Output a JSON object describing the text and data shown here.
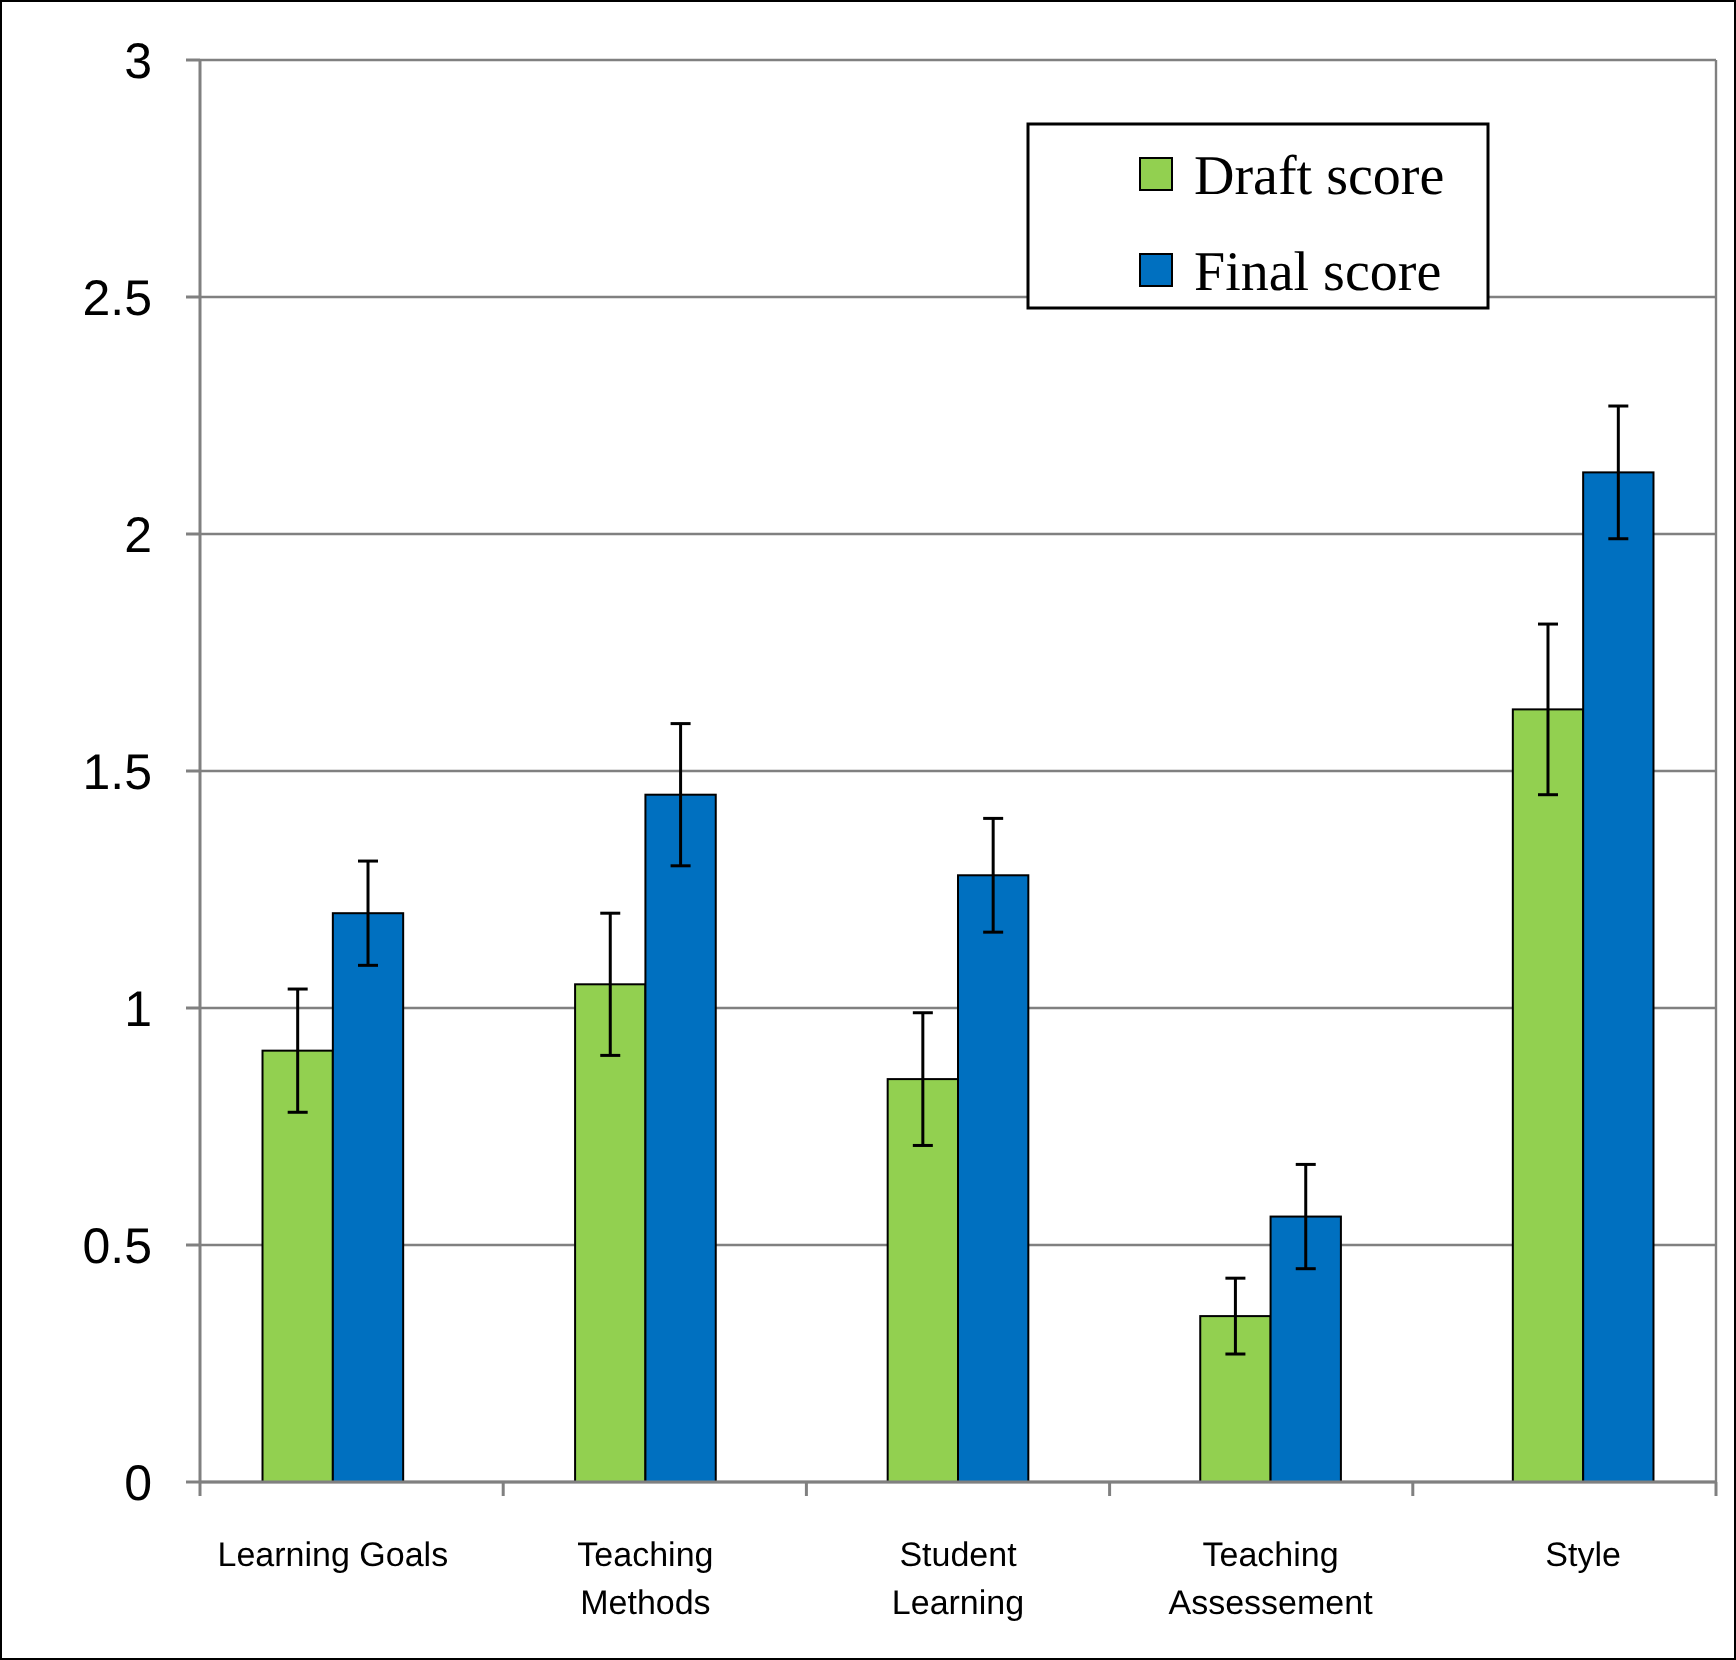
{
  "chart_data": {
    "type": "bar",
    "categories": [
      "Learning Goals",
      "Teaching Methods",
      "Student Learning",
      "Teaching Assessement",
      "Style"
    ],
    "series": [
      {
        "name": "Draft score",
        "color": "#92d050",
        "values": [
          0.91,
          1.05,
          0.85,
          0.35,
          1.63
        ],
        "errors": [
          [
            0.78,
            1.04
          ],
          [
            0.9,
            1.2
          ],
          [
            0.71,
            0.99
          ],
          [
            0.27,
            0.43
          ],
          [
            1.45,
            1.81
          ]
        ]
      },
      {
        "name": "Final score",
        "color": "#0070c0",
        "values": [
          1.2,
          1.45,
          1.28,
          0.56,
          2.13
        ],
        "errors": [
          [
            1.09,
            1.31
          ],
          [
            1.3,
            1.6
          ],
          [
            1.16,
            1.4
          ],
          [
            0.45,
            0.67
          ],
          [
            1.99,
            2.27
          ]
        ]
      }
    ],
    "ylim": [
      0,
      3
    ],
    "yticks": [
      0,
      0.5,
      1,
      1.5,
      2,
      2.5,
      3
    ],
    "grid": "y",
    "legend": "top right"
  }
}
